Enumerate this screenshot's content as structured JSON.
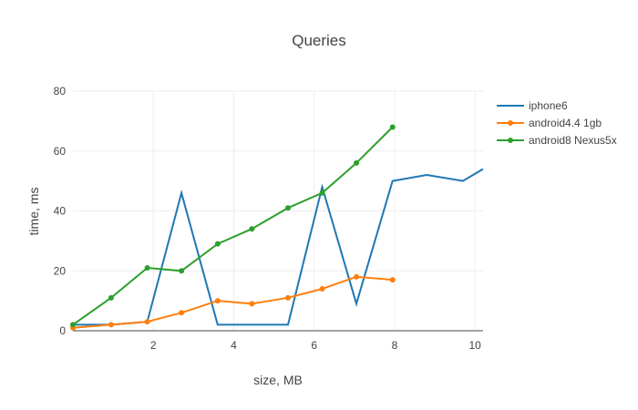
{
  "chart_data": {
    "type": "line",
    "title": "Queries",
    "xlabel": "size, MB",
    "ylabel": "time, ms",
    "xlim": [
      0,
      10.2
    ],
    "ylim": [
      0,
      80
    ],
    "xticks": [
      2,
      4,
      6,
      8,
      10
    ],
    "yticks": [
      0,
      20,
      40,
      60,
      80
    ],
    "grid": true,
    "legend": "top-right",
    "series": [
      {
        "name": "iphone6",
        "color": "#1f77b4",
        "markers": false,
        "x": [
          0.0,
          0.95,
          1.85,
          2.7,
          3.6,
          4.45,
          5.35,
          6.2,
          7.05,
          7.95,
          8.8,
          9.7,
          10.2
        ],
        "y": [
          2,
          2,
          3,
          46,
          2,
          2,
          2,
          48,
          9,
          50,
          52,
          50,
          54
        ]
      },
      {
        "name": "android4.4 1gb",
        "color": "#ff7f0e",
        "markers": true,
        "x": [
          0.0,
          0.95,
          1.85,
          2.7,
          3.6,
          4.45,
          5.35,
          6.2,
          7.05,
          7.95
        ],
        "y": [
          1,
          2,
          3,
          6,
          10,
          9,
          11,
          14,
          18,
          17
        ]
      },
      {
        "name": "android8 Nexus5x",
        "color": "#2ca02c",
        "markers": true,
        "x": [
          0.0,
          0.95,
          1.85,
          2.7,
          3.6,
          4.45,
          5.35,
          6.2,
          7.05,
          7.95
        ],
        "y": [
          2,
          11,
          21,
          20,
          29,
          34,
          41,
          46,
          56,
          68
        ]
      }
    ]
  }
}
